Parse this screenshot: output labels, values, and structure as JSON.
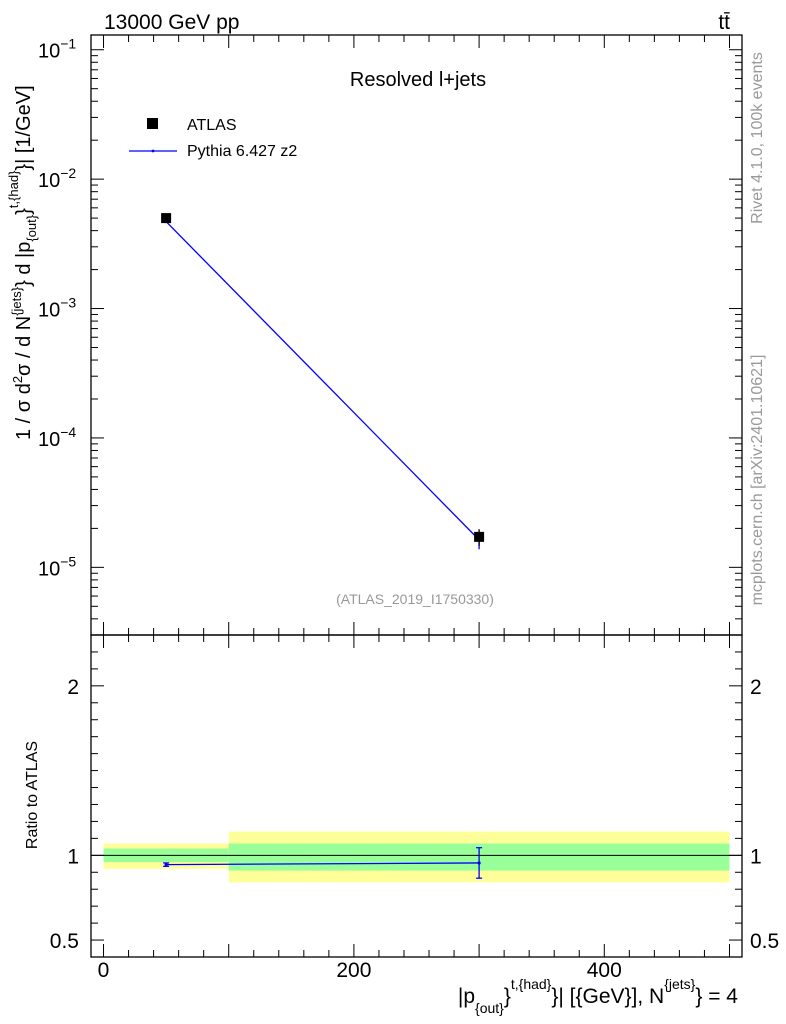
{
  "header": {
    "left": "13000 GeV pp",
    "right": "tt̄"
  },
  "side_labels": {
    "rivet": "Rivet 4.1.0,  100k events",
    "mcplots": "mcplots.cern.ch [arXiv:2401.10621]"
  },
  "colors": {
    "data": "#000000",
    "mc": "#0000ff",
    "band_inner": "#99ff99",
    "band_outer": "#ffff99",
    "frame": "#000000",
    "watermark": "#999999"
  },
  "chart_data": [
    {
      "type": "scatter",
      "panel": "main",
      "title": "Resolved l+jets",
      "watermark": "(ATLAS_2019_I1750330)",
      "ylabel": "1 / σ d²σ / d N^{jets} d |p_{out}^{t,{had}}| [1/GeV]",
      "yscale": "log",
      "ylim": [
        3e-06,
        0.13
      ],
      "xlim": [
        -10,
        510
      ],
      "ytick_labels": [
        {
          "value": 0.1,
          "base": "10",
          "exp": "−1"
        },
        {
          "value": 0.01,
          "base": "10",
          "exp": "−2"
        },
        {
          "value": 0.001,
          "base": "10",
          "exp": "−3"
        },
        {
          "value": 0.0001,
          "base": "10",
          "exp": "−4"
        },
        {
          "value": 1e-05,
          "base": "10",
          "exp": "−5"
        }
      ],
      "legend": {
        "placement": "top-left",
        "entries": [
          {
            "label": "ATLAS",
            "marker": "square",
            "color": "#000000"
          },
          {
            "label": "Pythia 6.427 z2",
            "marker": "line",
            "color": "#0000ff"
          }
        ]
      },
      "series": [
        {
          "name": "ATLAS",
          "x": [
            50,
            300
          ],
          "y": [
            0.005,
            1.72e-05
          ],
          "yerr_low": [
            0.0002,
            2.5e-06
          ],
          "yerr_high": [
            0.0002,
            2.5e-06
          ]
        },
        {
          "name": "Pythia 6.427 z2",
          "x": [
            50,
            300
          ],
          "y": [
            0.0047,
            1.63e-05
          ],
          "yerr_low": [
            5e-05,
            2.5e-06
          ],
          "yerr_high": [
            5e-05,
            2.5e-06
          ]
        }
      ]
    },
    {
      "type": "scatter",
      "panel": "ratio",
      "ylabel": "Ratio to ATLAS",
      "ylim": [
        0.4,
        2.3
      ],
      "xlim": [
        -10,
        510
      ],
      "ytick_labels": [
        {
          "value": 0.5,
          "label": "0.5"
        },
        {
          "value": 1,
          "label": "1"
        },
        {
          "value": 2,
          "label": "2"
        }
      ],
      "xtick_labels": [
        {
          "value": 0,
          "label": "0"
        },
        {
          "value": 200,
          "label": "200"
        },
        {
          "value": 400,
          "label": "400"
        }
      ],
      "xlabel": "|p_{out}^{t,{had}}| [{GeV}], N^{jets} = 4",
      "bands": [
        {
          "x0": 0,
          "x1": 100,
          "inner": [
            0.96,
            1.04
          ],
          "outer": [
            0.92,
            1.07
          ]
        },
        {
          "x0": 100,
          "x1": 500,
          "inner": [
            0.91,
            1.07
          ],
          "outer": [
            0.84,
            1.14
          ]
        }
      ],
      "series": [
        {
          "name": "Pythia 6.427 z2",
          "x": [
            50,
            300
          ],
          "y": [
            0.945,
            0.955
          ],
          "yerr_low": [
            0.01,
            0.09
          ],
          "yerr_high": [
            0.01,
            0.09
          ]
        }
      ]
    }
  ]
}
